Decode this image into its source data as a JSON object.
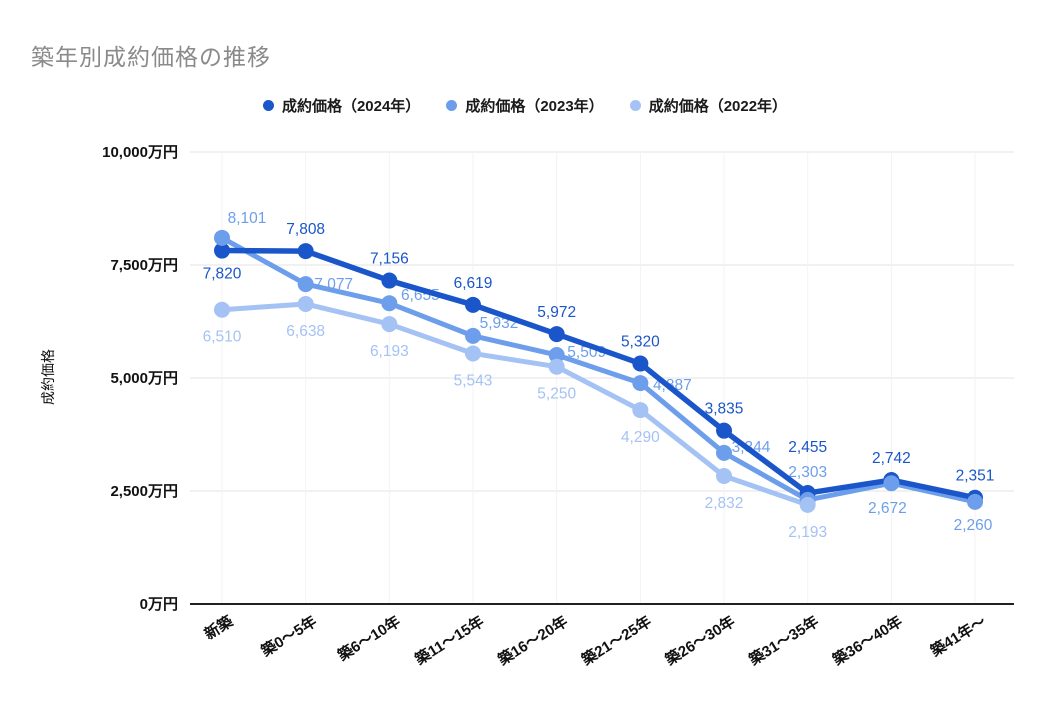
{
  "title": "築年別成約価格の推移",
  "colors": {
    "title_text": "#8a8a8a",
    "axis_text": "#111111",
    "legend_text": "#1a1a1a",
    "gridline": "#e3e3e3",
    "vertical_gridline": "#f3f3f3",
    "baseline": "#212121",
    "background": "#ffffff",
    "series_2024": "#1a56c9",
    "series_2023": "#6d9eeb",
    "series_2022": "#a4c2f4"
  },
  "chart_data": {
    "type": "line",
    "title": "築年別成約価格の推移",
    "categories": [
      "新築",
      "築0〜5年",
      "築6〜10年",
      "築11〜15年",
      "築16〜20年",
      "築21〜25年",
      "築26〜30年",
      "築31〜35年",
      "築36〜40年",
      "築41年〜"
    ],
    "series": [
      {
        "name": "成約価格（2024年）",
        "year": "2024",
        "color": "#1a56c9",
        "values": [
          7820,
          7808,
          7156,
          6619,
          5972,
          5320,
          3835,
          2455,
          2742,
          2351
        ]
      },
      {
        "name": "成約価格（2023年）",
        "year": "2023",
        "color": "#6d9eeb",
        "values": [
          8101,
          7077,
          6655,
          5932,
          5509,
          4887,
          3344,
          2303,
          2672,
          2260
        ]
      },
      {
        "name": "成約価格（2022年）",
        "year": "2022",
        "color": "#a4c2f4",
        "values": [
          6510,
          6638,
          6193,
          5543,
          5250,
          4290,
          2832,
          2193,
          null,
          null
        ]
      }
    ],
    "ylabel": "成約価格",
    "xlabel": "",
    "y_ticks": [
      {
        "value": 0,
        "label": "0万円"
      },
      {
        "value": 2500,
        "label": "2,500万円"
      },
      {
        "value": 5000,
        "label": "5,000万円"
      },
      {
        "value": 7500,
        "label": "7,500万円"
      },
      {
        "value": 10000,
        "label": "10,000万円"
      }
    ],
    "ylim": [
      0,
      10000
    ],
    "grid": "horizontal-major with faint vertical category lines",
    "legend_position": "top",
    "data_labels": true
  }
}
